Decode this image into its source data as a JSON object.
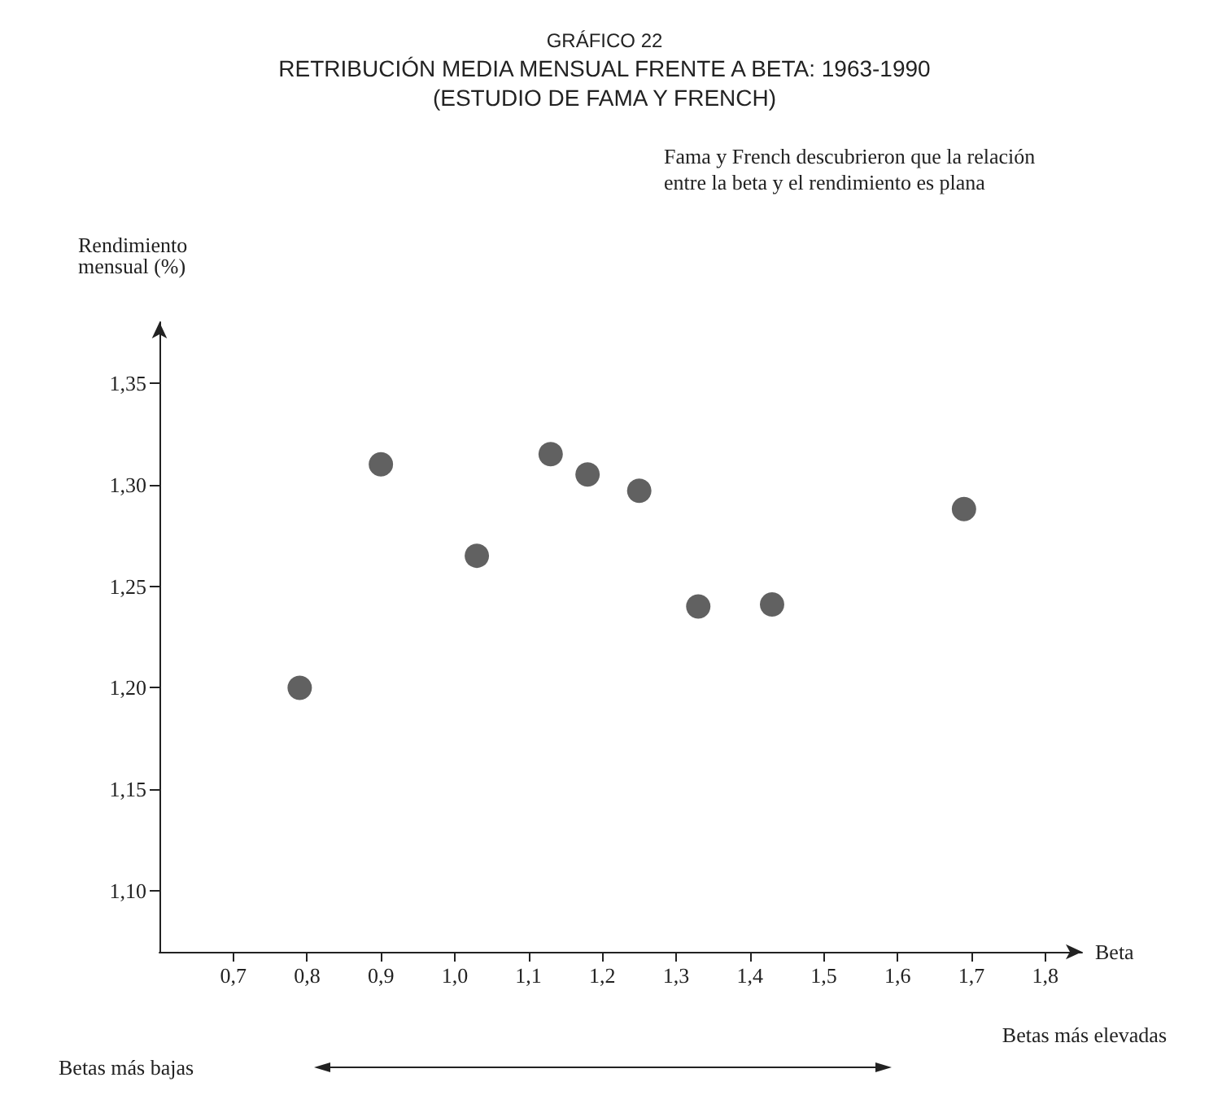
{
  "chart_data": {
    "type": "scatter",
    "title": "GRÁFICO 22",
    "subtitle": "RETRIBUCIÓN MEDIA MENSUAL FRENTE A BETA: 1963-1990\n(ESTUDIO DE FAMA Y FRENCH)",
    "xlabel": "Beta",
    "ylabel": "Rendimiento\nmensual (%)",
    "annotations": [
      "Fama y French descubrieron que la relación\nentre la beta y el rendimiento es plana",
      "Betas más bajas",
      "Betas más elevadas"
    ],
    "x": [
      0.79,
      0.9,
      1.03,
      1.13,
      1.18,
      1.25,
      1.33,
      1.43,
      1.69
    ],
    "values": [
      1.2,
      1.31,
      1.265,
      1.315,
      1.305,
      1.297,
      1.24,
      1.241,
      1.288
    ],
    "color": "#3a3a3a",
    "marker": "circle",
    "grid": false,
    "xlim": [
      0.6,
      1.85
    ],
    "ylim": [
      1.07,
      1.38
    ],
    "xticks": [
      {
        "value": 0.7,
        "label": "0,7"
      },
      {
        "value": 0.8,
        "label": "0,8"
      },
      {
        "value": 0.9,
        "label": "0,9"
      },
      {
        "value": 1.0,
        "label": "1,0"
      },
      {
        "value": 1.1,
        "label": "1,1"
      },
      {
        "value": 1.2,
        "label": "1,2"
      },
      {
        "value": 1.3,
        "label": "1,3"
      },
      {
        "value": 1.4,
        "label": "1,4"
      },
      {
        "value": 1.5,
        "label": "1,5"
      },
      {
        "value": 1.6,
        "label": "1,6"
      },
      {
        "value": 1.7,
        "label": "1,7"
      },
      {
        "value": 1.8,
        "label": "1,8"
      }
    ],
    "yticks": [
      {
        "value": 1.1,
        "label": "1,10"
      },
      {
        "value": 1.15,
        "label": "1,15"
      },
      {
        "value": 1.2,
        "label": "1,20"
      },
      {
        "value": 1.25,
        "label": "1,25"
      },
      {
        "value": 1.3,
        "label": "1,30"
      },
      {
        "value": 1.35,
        "label": "1,35"
      }
    ]
  }
}
